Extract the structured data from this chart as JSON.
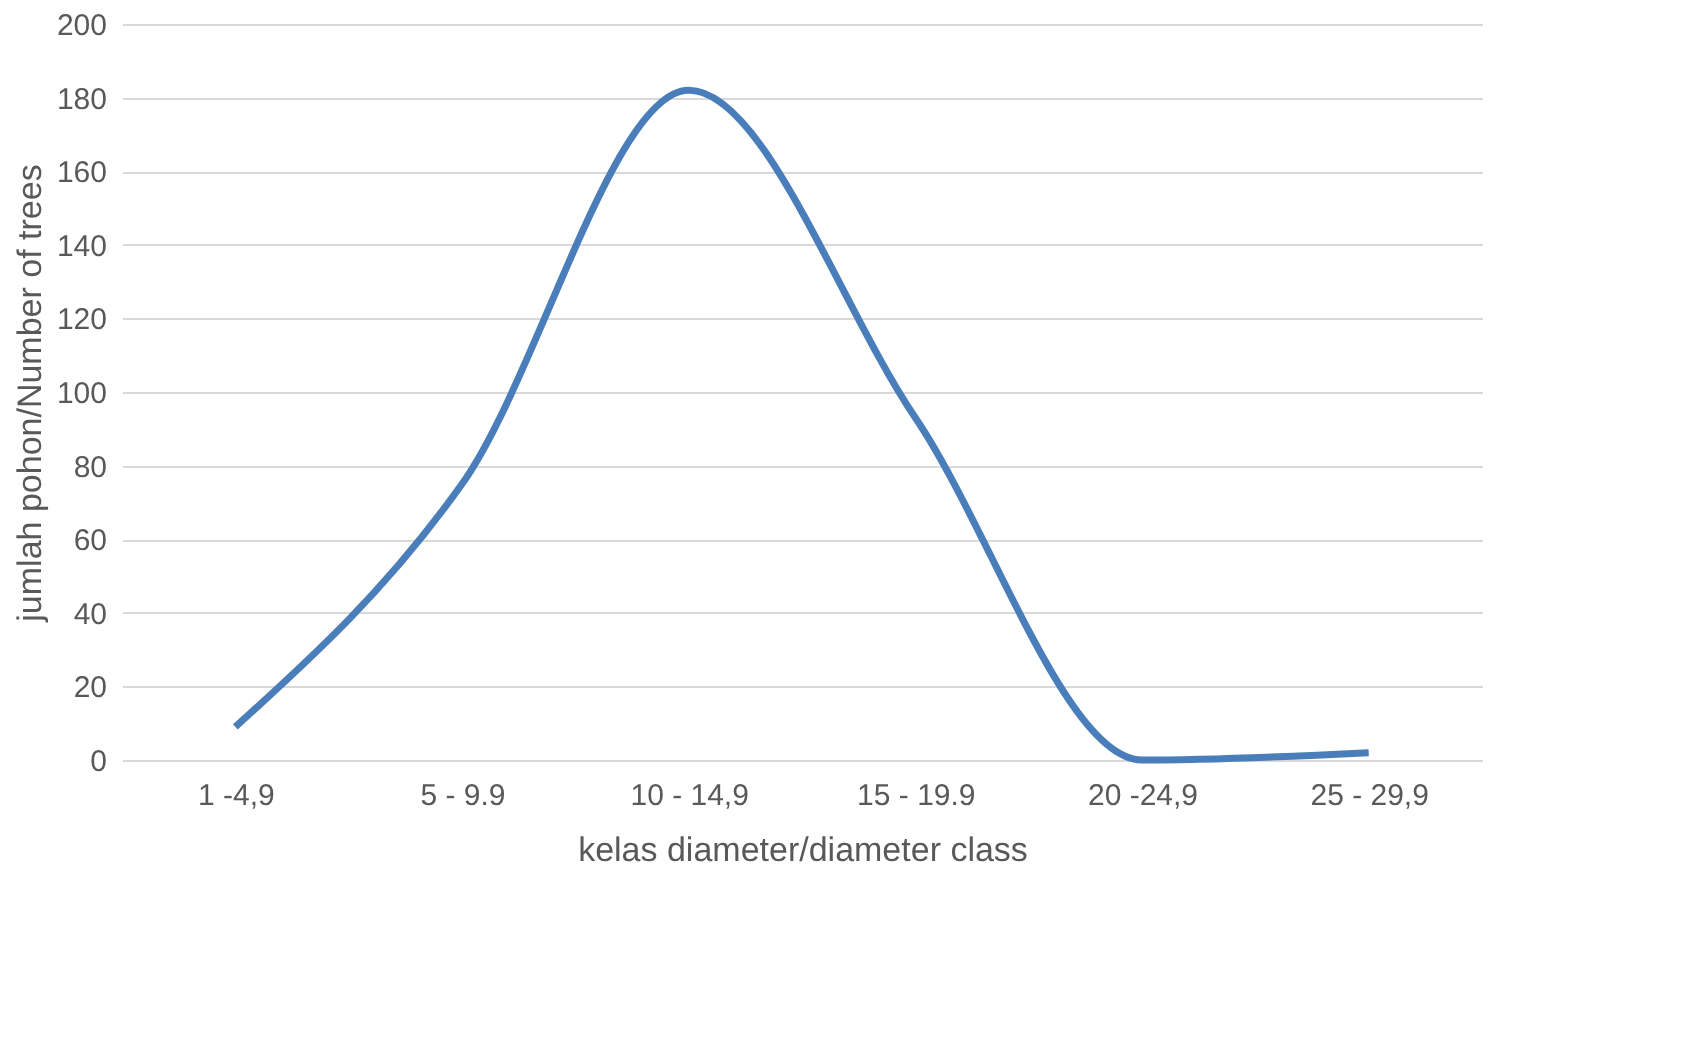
{
  "chart_data": {
    "type": "line",
    "xlabel": "kelas diameter/diameter class",
    "ylabel": "jumlah pohon/Number of trees",
    "categories": [
      "1 -4,9",
      "5 - 9.9",
      "10 - 14,9",
      "15 - 19.9",
      "20 -24,9",
      "25 - 29,9"
    ],
    "series": [
      {
        "color": "#4a7ebb",
        "values": [
          9,
          75,
          182,
          93,
          0,
          2
        ]
      }
    ],
    "ylim": [
      0,
      200
    ],
    "yticks": [
      0,
      20,
      40,
      60,
      80,
      100,
      120,
      140,
      160,
      180,
      200
    ],
    "grid": "y"
  }
}
